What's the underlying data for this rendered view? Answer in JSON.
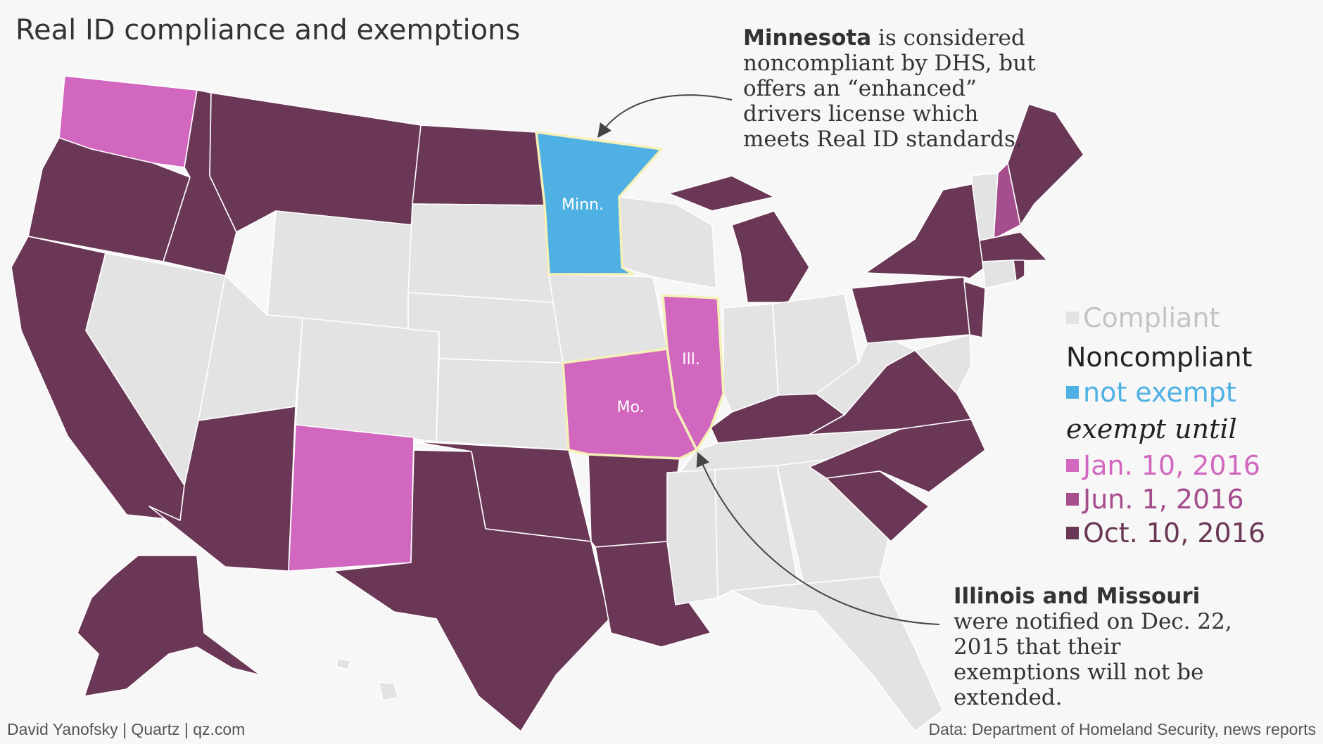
{
  "title": "Real ID compliance and exemptions",
  "colors": {
    "compliant": "#e3e3e3",
    "not_exempt": "#4fb0e3",
    "jan_2016": "#d167be",
    "jun_2016": "#a64d8e",
    "oct_2016": "#6b3756",
    "highlight_outline": "#f5f0b8"
  },
  "legend": {
    "compliant": "Compliant",
    "noncompliant": "Noncompliant",
    "not_exempt": "not exempt",
    "exempt_until": "exempt until",
    "jan": "Jan. 10, 2016",
    "jun": "Jun. 1, 2016",
    "oct": "Oct. 10, 2016"
  },
  "state_labels": {
    "mn": "Minn.",
    "il": "Ill.",
    "mo": "Mo."
  },
  "annotations": {
    "minnesota_bold": "Minnesota",
    "minnesota_text": " is considered noncompliant by DHS, but offers an “enhanced” drivers license which meets Real ID standards.",
    "illinois_bold": "Illinois and Missouri",
    "illinois_text": " were notified on Dec. 22, 2015 that their exemptions will not be extended."
  },
  "credit": "David Yanofsky | Quartz | qz.com",
  "source": "Data: Department of Homeland Security, news reports"
}
